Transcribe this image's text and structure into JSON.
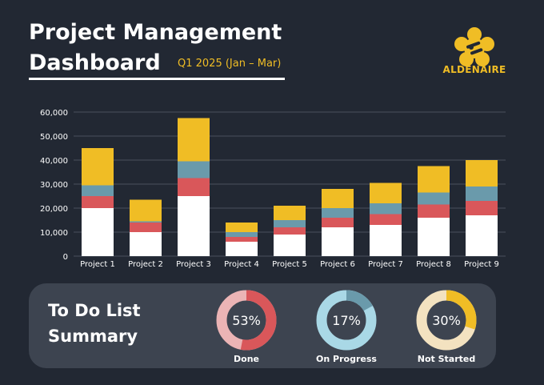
{
  "header": {
    "title_line1": "Project Management",
    "title_line2": "Dashboard",
    "period": "Q1 2025 (Jan – Mar)"
  },
  "brand": {
    "name": "ALDENAIRE",
    "color": "#f0bd25"
  },
  "colors": {
    "white_segment": "#ffffff",
    "red_segment": "#d9575a",
    "teal_segment": "#6a9aab",
    "yellow_segment": "#f0bd25"
  },
  "chart_data": {
    "type": "bar",
    "stacked": true,
    "categories": [
      "Project 1",
      "Project 2",
      "Project 3",
      "Project 4",
      "Project 5",
      "Project 6",
      "Project 7",
      "Project 8",
      "Project 9"
    ],
    "series": [
      {
        "color": "#ffffff",
        "values": [
          20000,
          10000,
          25000,
          6000,
          9000,
          12000,
          13000,
          16000,
          17000
        ]
      },
      {
        "color": "#d9575a",
        "values": [
          5000,
          4000,
          7500,
          2000,
          3000,
          4000,
          4500,
          5500,
          6000
        ]
      },
      {
        "color": "#6a9aab",
        "values": [
          4500,
          500,
          7000,
          2000,
          3000,
          4000,
          4500,
          5000,
          6000
        ]
      },
      {
        "color": "#f0bd25",
        "values": [
          15500,
          9000,
          18000,
          4000,
          6000,
          8000,
          8500,
          11000,
          11000
        ]
      }
    ],
    "yticks": [
      "0",
      "10,000",
      "20,000",
      "30,000",
      "40,000",
      "50,000",
      "60,000"
    ],
    "ylim": [
      0,
      60000
    ],
    "grid": true
  },
  "todo": {
    "title_line1": "To Do List",
    "title_line2": "Summary",
    "items": [
      {
        "label": "Done",
        "value": 53,
        "value_text": "53%",
        "color": "#d9575a",
        "track": "#ebb4b5"
      },
      {
        "label": "On Progress",
        "value": 17,
        "value_text": "17%",
        "color": "#6a9aab",
        "track": "#a9d8e6"
      },
      {
        "label": "Not Started",
        "value": 30,
        "value_text": "30%",
        "color": "#f0bd25",
        "track": "#f3e2c0"
      }
    ]
  }
}
